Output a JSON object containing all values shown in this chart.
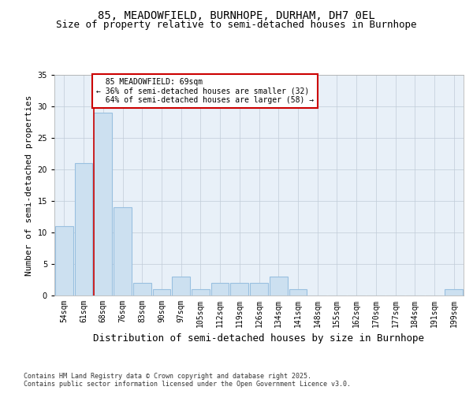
{
  "title1": "85, MEADOWFIELD, BURNHOPE, DURHAM, DH7 0EL",
  "title2": "Size of property relative to semi-detached houses in Burnhope",
  "xlabel": "Distribution of semi-detached houses by size in Burnhope",
  "ylabel": "Number of semi-detached properties",
  "categories": [
    "54sqm",
    "61sqm",
    "68sqm",
    "76sqm",
    "83sqm",
    "90sqm",
    "97sqm",
    "105sqm",
    "112sqm",
    "119sqm",
    "126sqm",
    "134sqm",
    "141sqm",
    "148sqm",
    "155sqm",
    "162sqm",
    "170sqm",
    "177sqm",
    "184sqm",
    "191sqm",
    "199sqm"
  ],
  "values": [
    11,
    21,
    29,
    14,
    2,
    1,
    3,
    1,
    2,
    2,
    2,
    3,
    1,
    0,
    0,
    0,
    0,
    0,
    0,
    0,
    1
  ],
  "bar_color": "#cce0f0",
  "bar_edge_color": "#99c0e0",
  "highlight_index": 2,
  "property_label": "85 MEADOWFIELD: 69sqm",
  "pct_smaller": 36,
  "count_smaller": 32,
  "pct_larger": 64,
  "count_larger": 58,
  "annotation_box_color": "#ffffff",
  "annotation_box_edge": "#cc0000",
  "vline_color": "#cc0000",
  "ylim": [
    0,
    35
  ],
  "yticks": [
    0,
    5,
    10,
    15,
    20,
    25,
    30,
    35
  ],
  "footer": "Contains HM Land Registry data © Crown copyright and database right 2025.\nContains public sector information licensed under the Open Government Licence v3.0.",
  "background_color": "#ffffff",
  "plot_background": "#e8f0f8",
  "grid_color": "#c0ccd8",
  "title1_fontsize": 10,
  "title2_fontsize": 9,
  "tick_fontsize": 7,
  "ylabel_fontsize": 8,
  "xlabel_fontsize": 9
}
